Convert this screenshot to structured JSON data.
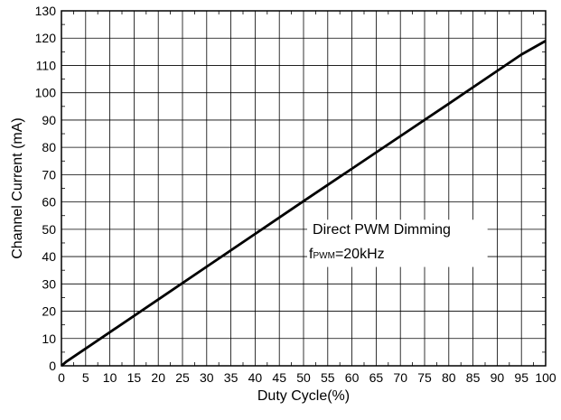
{
  "chart_data": {
    "type": "line",
    "xlabel": "Duty Cycle(%)",
    "ylabel": "Channel Current (mA)",
    "xlim": [
      0,
      100
    ],
    "ylim": [
      0,
      130
    ],
    "x_ticks": [
      0,
      5,
      10,
      15,
      20,
      25,
      30,
      35,
      40,
      45,
      50,
      55,
      60,
      65,
      70,
      75,
      80,
      85,
      90,
      95,
      100
    ],
    "y_ticks": [
      0,
      10,
      20,
      30,
      40,
      50,
      60,
      70,
      80,
      90,
      100,
      110,
      120,
      130
    ],
    "grid": true,
    "series": [
      {
        "x": [
          0,
          1,
          5,
          10,
          20,
          30,
          40,
          50,
          60,
          70,
          80,
          90,
          95,
          100
        ],
        "y": [
          0,
          1.5,
          6.3,
          12.3,
          24.3,
          36.3,
          48.3,
          60.3,
          72.2,
          84.1,
          96.0,
          108.0,
          114.0,
          119.0
        ]
      }
    ],
    "annotation": {
      "line1": "Direct PWM Dimming",
      "line2_prefix": "f",
      "line2_sub": "PWM",
      "line2_suffix": "=20kHz"
    }
  }
}
